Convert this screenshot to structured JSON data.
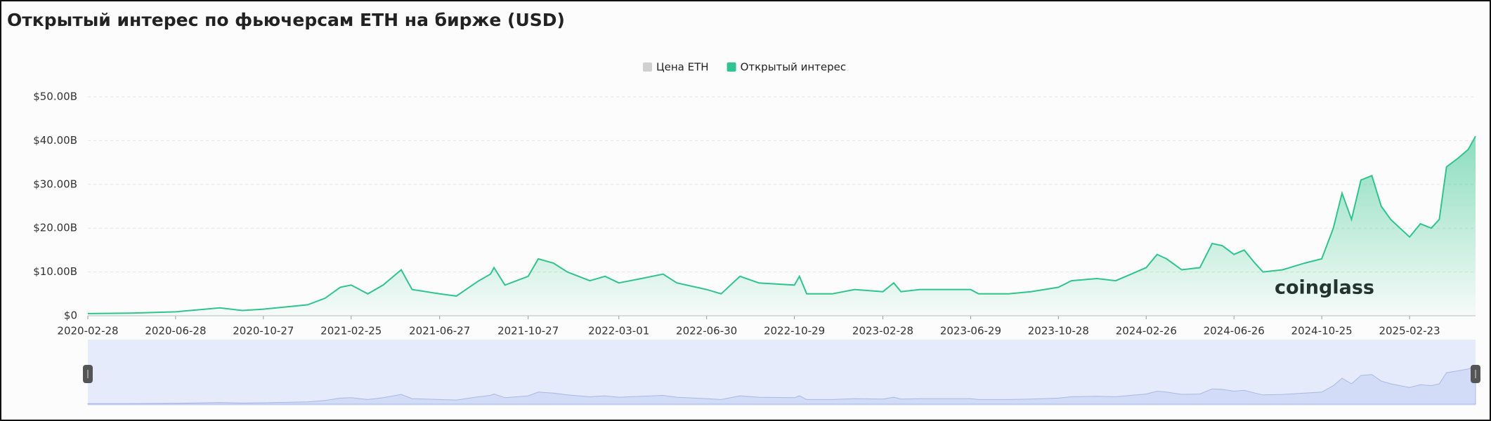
{
  "chart_data": {
    "type": "area",
    "title": "Открытый интерес по фьючерсам ETH на бирже (USD)",
    "watermark": "coinglass",
    "legend": [
      {
        "name": "Цена ETH",
        "color": "#cccccc",
        "active": false
      },
      {
        "name": "Открытый интерес",
        "color": "#2fc48d",
        "active": true
      }
    ],
    "x": [
      "2020-02-28",
      "2020-04-28",
      "2020-06-28",
      "2020-08-28",
      "2020-09-28",
      "2020-10-27",
      "2020-12-27",
      "2021-01-20",
      "2021-02-10",
      "2021-02-25",
      "2021-03-20",
      "2021-04-10",
      "2021-05-05",
      "2021-05-20",
      "2021-06-27",
      "2021-07-20",
      "2021-08-20",
      "2021-09-05",
      "2021-09-10",
      "2021-09-25",
      "2021-10-27",
      "2021-11-10",
      "2021-12-01",
      "2021-12-20",
      "2022-01-20",
      "2022-02-10",
      "2022-03-01",
      "2022-04-01",
      "2022-05-01",
      "2022-05-20",
      "2022-06-30",
      "2022-07-20",
      "2022-08-15",
      "2022-09-10",
      "2022-10-29",
      "2022-11-05",
      "2022-11-15",
      "2022-12-20",
      "2023-01-20",
      "2023-02-28",
      "2023-03-15",
      "2023-03-25",
      "2023-04-20",
      "2023-05-20",
      "2023-06-29",
      "2023-07-10",
      "2023-08-20",
      "2023-09-20",
      "2023-10-28",
      "2023-11-15",
      "2023-12-20",
      "2024-01-15",
      "2024-02-26",
      "2024-03-12",
      "2024-03-25",
      "2024-04-15",
      "2024-05-10",
      "2024-05-27",
      "2024-06-10",
      "2024-06-26",
      "2024-07-10",
      "2024-07-25",
      "2024-08-05",
      "2024-09-01",
      "2024-10-01",
      "2024-10-25",
      "2024-11-10",
      "2024-11-22",
      "2024-12-05",
      "2024-12-18",
      "2025-01-02",
      "2025-01-15",
      "2025-01-28",
      "2025-02-10",
      "2025-02-23",
      "2025-03-10",
      "2025-03-25",
      "2025-04-05",
      "2025-04-15",
      "2025-05-01",
      "2025-05-15",
      "2025-05-25"
    ],
    "series": [
      {
        "name": "Открытый интерес",
        "color": "#2fc48d",
        "values": [
          0.5,
          0.6,
          0.9,
          1.8,
          1.2,
          1.5,
          2.5,
          4,
          6.5,
          7,
          5,
          7,
          10.5,
          6,
          5,
          4.5,
          8,
          9.5,
          11,
          7,
          9,
          13,
          12,
          10,
          8,
          9,
          7.5,
          8.5,
          9.5,
          7.5,
          6,
          5,
          9,
          7.5,
          7,
          9,
          5,
          5,
          6,
          5.5,
          7.5,
          5.5,
          6,
          6,
          6,
          5,
          5,
          5.5,
          6.5,
          8,
          8.5,
          8,
          11,
          14,
          13,
          10.5,
          11,
          16.5,
          16,
          14,
          15,
          12,
          10,
          10.5,
          12,
          13,
          20,
          28,
          22,
          31,
          32,
          25,
          22,
          20,
          18,
          21,
          20,
          22,
          34,
          36,
          38,
          41
        ]
      }
    ],
    "xlim": [
      "2020-02-28",
      "2025-05-25"
    ],
    "xticks": [
      "2020-02-28",
      "2020-06-28",
      "2020-10-27",
      "2021-02-25",
      "2021-06-27",
      "2021-10-27",
      "2022-03-01",
      "2022-06-30",
      "2022-10-29",
      "2023-02-28",
      "2023-06-29",
      "2023-10-28",
      "2024-02-26",
      "2024-06-26",
      "2024-10-25",
      "2025-02-23"
    ],
    "ylim": [
      0,
      50
    ],
    "yticks": [
      {
        "value": 0,
        "label": "$0"
      },
      {
        "value": 10,
        "label": "$10.00B"
      },
      {
        "value": 20,
        "label": "$20.00B"
      },
      {
        "value": 30,
        "label": "$30.00B"
      },
      {
        "value": 40,
        "label": "$40.00B"
      },
      {
        "value": 50,
        "label": "$50.00B"
      }
    ],
    "grid": true
  }
}
